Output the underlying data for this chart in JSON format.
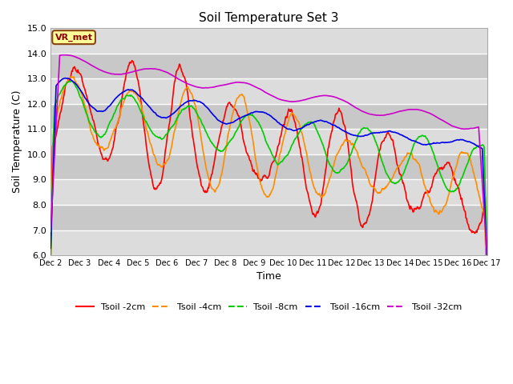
{
  "title": "Soil Temperature Set 3",
  "xlabel": "Time",
  "ylabel": "Soil Temperature (C)",
  "ylim": [
    6.0,
    15.0
  ],
  "yticks": [
    6.0,
    7.0,
    8.0,
    9.0,
    10.0,
    11.0,
    12.0,
    13.0,
    14.0,
    15.0
  ],
  "x_labels": [
    "Dec 2",
    "Dec 3",
    "Dec 4",
    "Dec 5",
    "Dec 6",
    "Dec 7",
    "Dec 8",
    "Dec 9",
    "Dec 10",
    "Dec 11",
    "Dec 12",
    "Dec 13",
    "Dec 14",
    "Dec 15",
    "Dec 16",
    "Dec 17"
  ],
  "annotation_text": "VR_met",
  "annotation_color": "#8B0000",
  "annotation_bg": "#FFFF99",
  "annotation_border": "#8B4513",
  "line_colors": [
    "#FF0000",
    "#FF8C00",
    "#00CC00",
    "#0000EE",
    "#CC00CC"
  ],
  "line_labels": [
    "Tsoil -2cm",
    "Tsoil -4cm",
    "Tsoil -8cm",
    "Tsoil -16cm",
    "Tsoil -32cm"
  ],
  "bg_color": "#FFFFFF",
  "plot_bg_light": "#DCDCDC",
  "plot_bg_dark": "#C8C8C8",
  "grid_color": "#FFFFFF",
  "n_points": 720,
  "band_colors": [
    "#DCDCDC",
    "#C8C8C8"
  ]
}
